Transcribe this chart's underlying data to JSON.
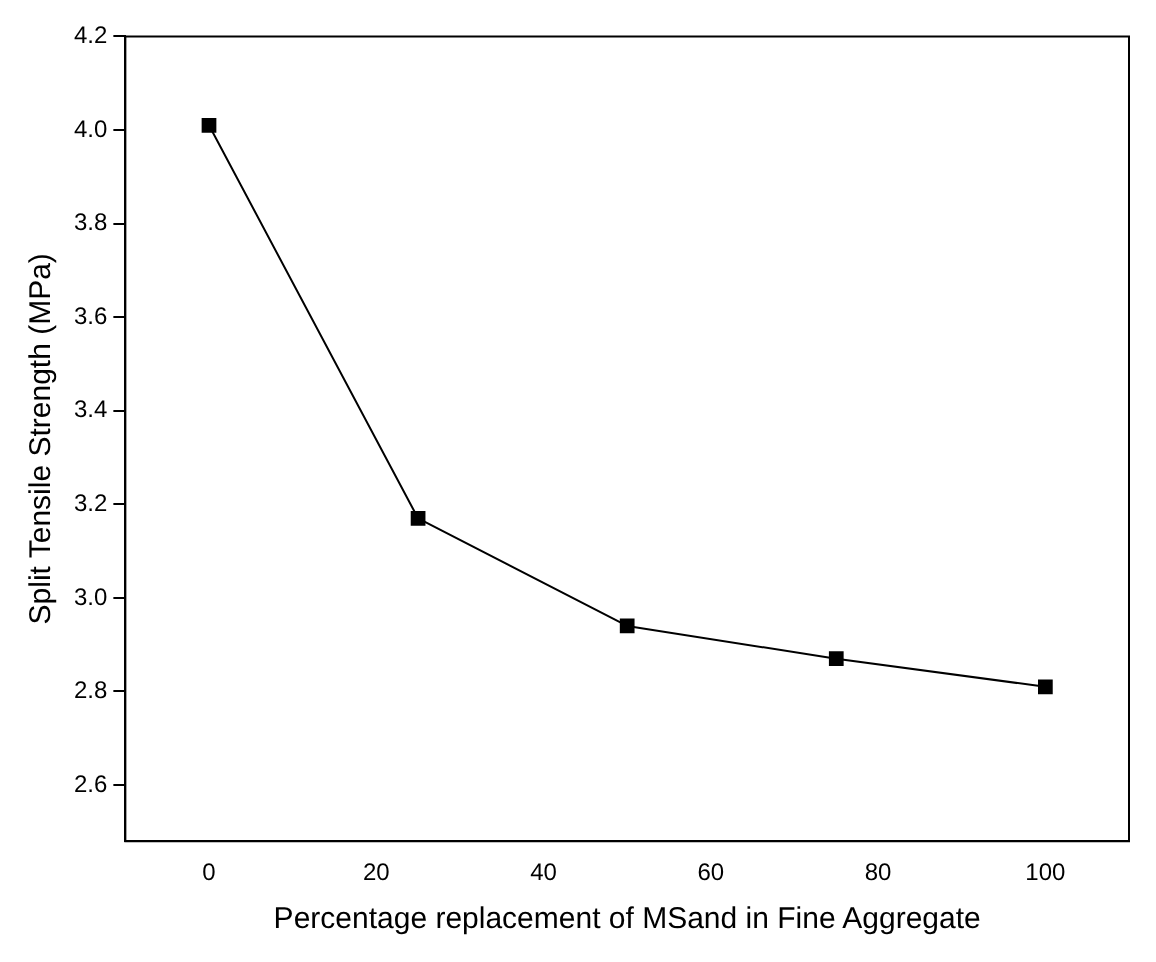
{
  "chart_data": {
    "type": "line",
    "xlabel": "Percentage replacement of MSand in Fine Aggregate",
    "ylabel": "Split Tensile Strength (MPa)",
    "x": [
      0,
      25,
      50,
      75,
      100
    ],
    "series": [
      {
        "color": "#000000",
        "values": [
          4.01,
          3.17,
          2.94,
          2.87,
          2.81
        ]
      }
    ],
    "xlim": [
      -10,
      110
    ],
    "xticks": [
      0,
      20,
      40,
      60,
      80,
      100
    ],
    "ylim": [
      2.48,
      4.2
    ],
    "yticks": [
      2.6,
      2.8,
      {
        "value": 3,
        "label": "3.0"
      },
      3.2,
      3.4,
      3.6,
      3.8,
      {
        "value": 4,
        "label": "4.0"
      },
      4.2
    ],
    "marker": "square",
    "line_style": "solid",
    "grid": false,
    "legend": false
  }
}
